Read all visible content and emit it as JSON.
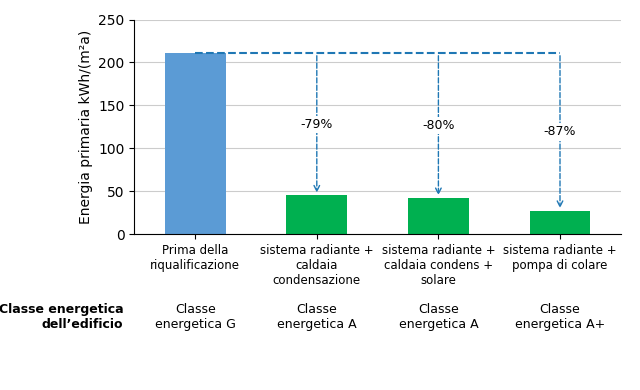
{
  "chart_data": {
    "type": "bar",
    "categories": [
      "Prima della\nriqualificazione",
      "sistema radiante +\ncaldaia\ncondensazione",
      "sistema radiante +\ncaldaia condens +\nsolare",
      "sistema radiante +\npompa di colare"
    ],
    "values": [
      211,
      45,
      42,
      27
    ],
    "colors": [
      "#5B9BD5",
      "#00B050",
      "#00B050",
      "#00B050"
    ],
    "ylabel": "Energia primaria kWh/(m²a)",
    "ylim": [
      0,
      250
    ],
    "yticks": [
      0,
      50,
      100,
      150,
      200,
      250
    ],
    "grid": true,
    "reference_line": 211,
    "annotations": [
      {
        "category": "sistema radiante +\ncaldaia\ncondensazione",
        "text": "-79%"
      },
      {
        "category": "sistema radiante +\ncaldaia condens +\nsolare",
        "text": "-80%"
      },
      {
        "category": "sistema radiante +\npompa di colare",
        "text": "-87%"
      }
    ],
    "class_label_title": "Classe energetica\ndell’edificio",
    "class_labels": [
      "Classe\nenergetica G",
      "Classe\nenergetica A",
      "Classe\nenergetica A",
      "Classe\nenergetica A+"
    ]
  }
}
